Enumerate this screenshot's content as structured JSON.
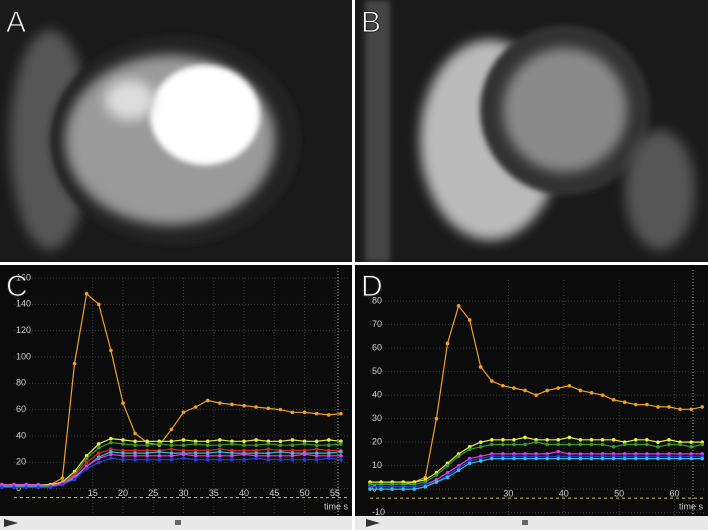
{
  "panel_labels": [
    "A",
    "B",
    "C",
    "D"
  ],
  "chart_data": [
    {
      "type": "line",
      "x_label": "time s",
      "x": [
        0,
        2,
        4,
        6,
        8,
        10,
        12,
        14,
        16,
        18,
        20,
        22,
        24,
        26,
        28,
        30,
        32,
        34,
        36,
        38,
        40,
        42,
        44,
        46,
        48,
        50,
        52,
        54,
        56
      ],
      "xlim": [
        2,
        57.5
      ],
      "xticks": [
        15,
        20,
        25,
        30,
        35,
        40,
        45,
        50,
        55
      ],
      "ylim": [
        -20,
        160
      ],
      "yticks": [
        0,
        20,
        40,
        60,
        80,
        100,
        120,
        140,
        160
      ],
      "grid": true,
      "series": [
        {
          "color": "#f0a020",
          "values": [
            2,
            2,
            2,
            2,
            3,
            8,
            95,
            148,
            140,
            105,
            65,
            42,
            35,
            33,
            45,
            58,
            62,
            67,
            65,
            64,
            63,
            62,
            61,
            60,
            58,
            58,
            57,
            56,
            57
          ]
        },
        {
          "color": "#e8f040",
          "values": [
            3,
            3,
            3,
            3,
            3,
            5,
            13,
            25,
            34,
            38,
            37,
            36,
            36,
            36,
            36,
            37,
            36,
            36,
            37,
            36,
            36,
            37,
            36,
            36,
            37,
            36,
            36,
            37,
            36
          ]
        },
        {
          "color": "#30a030",
          "values": [
            2,
            2,
            2,
            2,
            2,
            4,
            11,
            23,
            31,
            35,
            34,
            33,
            33,
            34,
            33,
            33,
            34,
            33,
            33,
            34,
            33,
            33,
            34,
            33,
            33,
            34,
            33,
            33,
            34
          ]
        },
        {
          "color": "#e02020",
          "values": [
            2,
            2,
            2,
            2,
            2,
            4,
            10,
            20,
            27,
            30,
            29,
            29,
            29,
            29,
            30,
            29,
            29,
            29,
            30,
            29,
            29,
            29,
            30,
            29,
            29,
            29,
            30,
            29,
            29
          ]
        },
        {
          "color": "#30c0e0",
          "values": [
            2,
            2,
            2,
            2,
            2,
            3,
            8,
            17,
            24,
            28,
            27,
            27,
            27,
            28,
            27,
            27,
            27,
            27,
            28,
            27,
            27,
            27,
            27,
            28,
            27,
            27,
            27,
            27,
            28
          ]
        },
        {
          "color": "#e040e0",
          "values": [
            3,
            3,
            3,
            3,
            2,
            4,
            9,
            17,
            23,
            26,
            25,
            25,
            25,
            25,
            25,
            26,
            25,
            25,
            25,
            25,
            26,
            25,
            25,
            25,
            25,
            26,
            25,
            25,
            25
          ]
        },
        {
          "color": "#2040e0",
          "values": [
            1,
            1,
            1,
            1,
            1,
            3,
            7,
            15,
            20,
            23,
            22,
            22,
            22,
            22,
            22,
            23,
            22,
            22,
            22,
            22,
            22,
            23,
            22,
            22,
            22,
            22,
            22,
            23,
            22
          ]
        }
      ]
    },
    {
      "type": "line",
      "x_label": "time s",
      "x": [
        5,
        7,
        9,
        11,
        13,
        15,
        17,
        19,
        21,
        23,
        25,
        27,
        29,
        31,
        33,
        35,
        37,
        39,
        41,
        43,
        45,
        47,
        49,
        51,
        53,
        55,
        57,
        59,
        61,
        63,
        65
      ],
      "xlim": [
        5,
        65.5
      ],
      "xticks": [
        30,
        40,
        50,
        60
      ],
      "ylim": [
        -11,
        89
      ],
      "yticks": [
        -10,
        0,
        10,
        20,
        30,
        40,
        50,
        60,
        70,
        80
      ],
      "grid": true,
      "series": [
        {
          "color": "#f0a020",
          "values": [
            2,
            2,
            2,
            2,
            3,
            5,
            30,
            62,
            78,
            72,
            52,
            46,
            44,
            43,
            42,
            40,
            42,
            43,
            44,
            42,
            41,
            40,
            38,
            37,
            36,
            36,
            35,
            35,
            34,
            34,
            35
          ]
        },
        {
          "color": "#e8f040",
          "values": [
            3,
            3,
            3,
            3,
            3,
            4,
            7,
            11,
            15,
            18,
            20,
            21,
            21,
            21,
            22,
            21,
            21,
            21,
            22,
            21,
            21,
            21,
            21,
            20,
            21,
            21,
            20,
            21,
            20,
            20,
            20
          ]
        },
        {
          "color": "#30a030",
          "values": [
            2,
            2,
            2,
            2,
            2,
            3,
            6,
            10,
            14,
            17,
            18,
            19,
            19,
            19,
            19,
            20,
            19,
            19,
            19,
            19,
            19,
            19,
            18,
            19,
            19,
            19,
            18,
            19,
            19,
            18,
            19
          ]
        },
        {
          "color": "#e040e0",
          "values": [
            1,
            1,
            1,
            1,
            1,
            2,
            4,
            7,
            10,
            13,
            14,
            15,
            15,
            15,
            15,
            15,
            15,
            16,
            15,
            15,
            15,
            15,
            15,
            15,
            15,
            15,
            15,
            15,
            15,
            15,
            15
          ]
        },
        {
          "color": "#2040e0",
          "values": [
            1,
            1,
            1,
            1,
            1,
            2,
            3,
            6,
            9,
            12,
            13,
            14,
            14,
            14,
            14,
            14,
            14,
            14,
            14,
            14,
            14,
            14,
            14,
            14,
            14,
            14,
            14,
            14,
            14,
            14,
            14
          ]
        },
        {
          "color": "#30c0e0",
          "values": [
            0,
            0,
            0,
            0,
            0,
            1,
            3,
            5,
            8,
            11,
            12,
            13,
            13,
            13,
            13,
            13,
            13,
            13,
            13,
            13,
            13,
            13,
            13,
            13,
            13,
            13,
            13,
            13,
            13,
            13,
            13
          ]
        }
      ]
    }
  ]
}
